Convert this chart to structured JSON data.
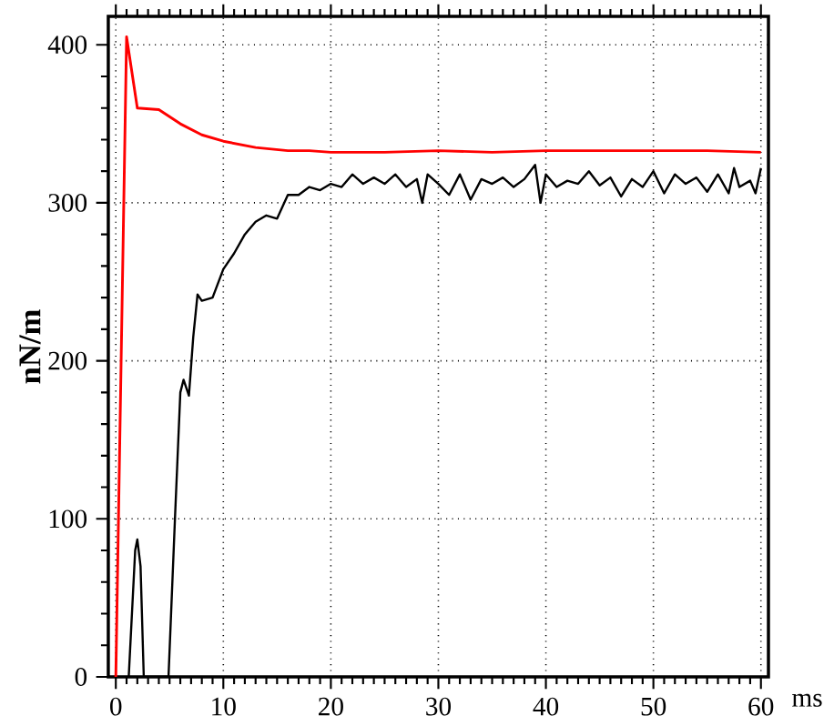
{
  "chart_data": {
    "type": "line",
    "xlabel": "ms",
    "ylabel": "nN/m",
    "xlim": [
      -0.7,
      60.7
    ],
    "ylim": [
      0,
      418
    ],
    "xticks": [
      0,
      10,
      20,
      30,
      40,
      50,
      60
    ],
    "yticks": [
      0,
      100,
      200,
      300,
      400
    ],
    "grid": true,
    "series": [
      {
        "color": "#ff0000",
        "x": [
          0,
          1,
          2,
          4,
          6,
          8,
          10,
          13,
          16,
          18,
          20,
          25,
          30,
          35,
          40,
          45,
          50,
          55,
          60
        ],
        "values": [
          0,
          405,
          360,
          359,
          350,
          343,
          339,
          335,
          333,
          333,
          332,
          332,
          333,
          332,
          333,
          333,
          333,
          333,
          332
        ]
      },
      {
        "color": "#000000",
        "x": [
          1.2,
          1.8,
          2,
          2.3,
          2.6,
          4.9,
          5.5,
          6,
          6.3,
          6.8,
          7.2,
          7.6,
          8,
          9,
          10,
          11,
          12,
          13,
          14,
          15,
          16,
          17,
          18,
          19,
          20,
          21,
          22,
          23,
          24,
          25,
          26,
          27,
          28,
          28.5,
          29,
          30,
          31,
          32,
          33,
          34,
          35,
          36,
          37,
          38,
          39,
          39.5,
          40,
          41,
          42,
          43,
          44,
          45,
          46,
          47,
          48,
          49,
          50,
          51,
          52,
          53,
          54,
          55,
          56,
          57,
          57.5,
          58,
          59,
          59.5,
          60
        ],
        "values": [
          0,
          80,
          87,
          70,
          0,
          0,
          100,
          180,
          188,
          178,
          215,
          242,
          238,
          240,
          258,
          268,
          280,
          288,
          292,
          290,
          305,
          305,
          310,
          308,
          312,
          310,
          318,
          312,
          316,
          312,
          318,
          310,
          315,
          300,
          318,
          312,
          305,
          318,
          302,
          315,
          312,
          316,
          310,
          315,
          324,
          300,
          318,
          310,
          314,
          312,
          320,
          311,
          316,
          304,
          315,
          310,
          320,
          306,
          318,
          312,
          316,
          307,
          318,
          306,
          322,
          310,
          314,
          306,
          322
        ]
      }
    ]
  }
}
